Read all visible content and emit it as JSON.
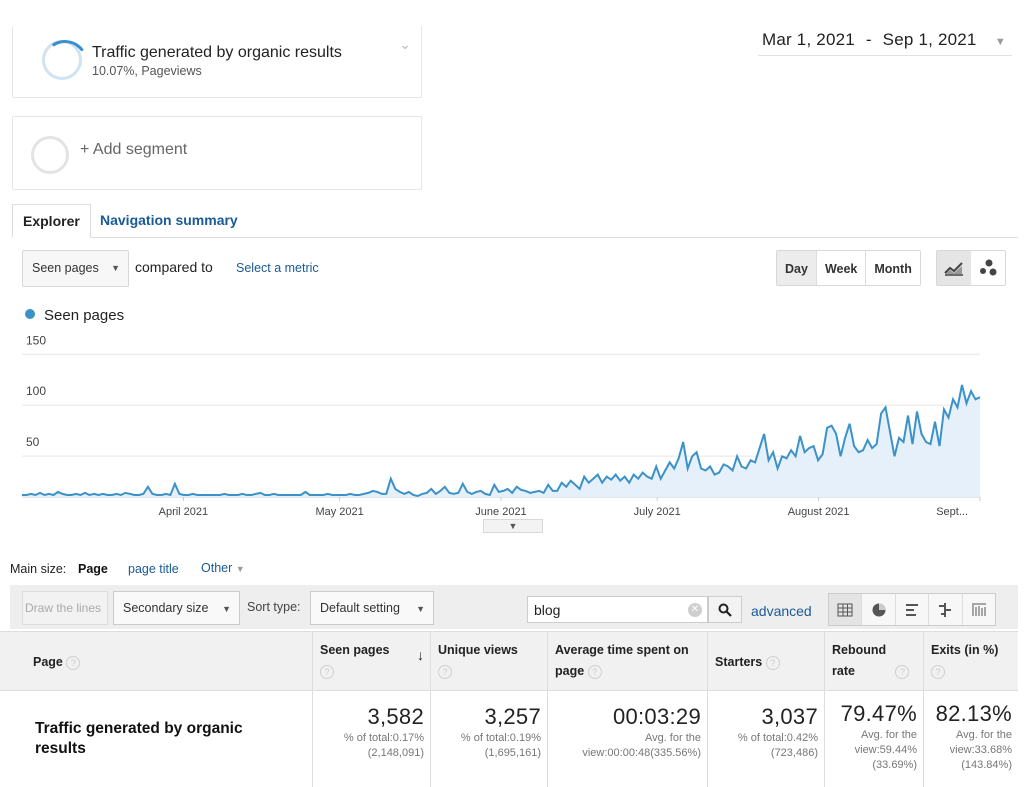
{
  "segments": [
    {
      "title": "Traffic generated by organic results",
      "subtitle": "10.07%, Pageviews"
    },
    {
      "title": "+ Add segment"
    }
  ],
  "date_range": {
    "start": "Mar 1, 2021",
    "separator": "-",
    "end": "Sep 1, 2021"
  },
  "tabs": [
    {
      "label": "Explorer",
      "active": true
    },
    {
      "label": "Navigation summary",
      "active": false
    }
  ],
  "metric_controls": {
    "primary_metric": "Seen pages",
    "compared_to": "compared to",
    "select_metric": "Select a metric"
  },
  "period_buttons": [
    {
      "label": "Day",
      "active": true
    },
    {
      "label": "Week",
      "active": false
    },
    {
      "label": "Month",
      "active": false
    }
  ],
  "chart_type_icons": [
    "line-chart-icon",
    "motion-chart-icon"
  ],
  "chart_data": {
    "type": "area",
    "series": [
      {
        "name": "Seen pages",
        "color": "#3a92c9"
      }
    ],
    "y_ticks": [
      "150",
      "100",
      "50"
    ],
    "x_ticks": [
      "April 2021",
      "May 2021",
      "June 2021",
      "July 2021",
      "August 2021",
      "Sept..."
    ],
    "ylim": [
      0,
      165
    ],
    "x_range_days": [
      0,
      184
    ],
    "values": [
      2,
      2,
      3,
      2,
      4,
      2,
      3,
      2,
      5,
      3,
      2,
      2,
      3,
      2,
      4,
      2,
      3,
      2,
      3,
      2,
      2,
      3,
      2,
      4,
      3,
      2,
      2,
      3,
      10,
      3,
      2,
      2,
      3,
      2,
      13,
      3,
      2,
      2,
      3,
      2,
      2,
      2,
      2,
      2,
      2,
      3,
      2,
      2,
      2,
      3,
      2,
      2,
      3,
      4,
      2,
      2,
      3,
      2,
      2,
      2,
      2,
      2,
      2,
      5,
      2,
      2,
      2,
      2,
      3,
      2,
      2,
      2,
      2,
      3,
      2,
      2,
      3,
      4,
      6,
      5,
      3,
      3,
      18,
      8,
      5,
      3,
      5,
      2,
      1,
      3,
      4,
      8,
      3,
      6,
      10,
      4,
      3,
      4,
      13,
      5,
      3,
      5,
      6,
      3,
      2,
      12,
      5,
      6,
      8,
      4,
      10,
      7,
      6,
      4,
      5,
      6,
      4,
      12,
      6,
      6,
      14,
      10,
      16,
      12,
      8,
      20,
      14,
      18,
      22,
      14,
      20,
      17,
      22,
      16,
      20,
      14,
      22,
      18,
      24,
      20,
      18,
      30,
      18,
      26,
      34,
      28,
      38,
      54,
      28,
      40,
      44,
      28,
      26,
      30,
      22,
      24,
      32,
      30,
      26,
      40,
      30,
      28,
      36,
      34,
      48,
      62,
      36,
      44,
      28,
      40,
      38,
      46,
      40,
      60,
      44,
      48,
      50,
      36,
      42,
      68,
      70,
      62,
      40,
      58,
      72,
      50,
      44,
      46,
      56,
      48,
      52,
      82,
      88,
      64,
      40,
      58,
      54,
      80,
      52,
      84,
      62,
      54,
      52,
      74,
      50,
      86,
      78,
      96,
      88,
      110,
      92,
      104,
      96,
      98
    ]
  },
  "main_size": {
    "label": "Main size:",
    "options": [
      "Page",
      "page title",
      "Other"
    ],
    "selected": "Page"
  },
  "toolbar": {
    "draw_lines": "Draw the lines",
    "secondary_size": "Secondary size",
    "sort_type_label": "Sort type:",
    "sort_value": "Default setting",
    "search_value": "blog",
    "advanced": "advanced"
  },
  "view_icons": [
    "data-table-icon",
    "pie-chart-icon",
    "performance-icon",
    "comparison-icon",
    "term-cloud-icon"
  ],
  "table": {
    "columns": [
      {
        "label": "Page",
        "help": "?"
      },
      {
        "label": "Seen pages",
        "help": "?",
        "sorted": true
      },
      {
        "label": "Unique views",
        "help": "?"
      },
      {
        "label": "Average time spent on page",
        "help": "?"
      },
      {
        "label": "Starters",
        "help": "?"
      },
      {
        "label": "Rebound rate",
        "help": "?"
      },
      {
        "label": "Exits (in %)",
        "help": "?"
      }
    ],
    "rows": [
      {
        "title": "Traffic generated by organic results",
        "cells": [
          {
            "value": "3,582",
            "sub1": "% of total:0.17%",
            "sub2": "(2,148,091)"
          },
          {
            "value": "3,257",
            "sub1": "% of total:0.19%",
            "sub2": "(1,695,161)"
          },
          {
            "value": "00:03:29",
            "sub1": "Avg. for the",
            "sub2": "view:00:00:48(335.56%)"
          },
          {
            "value": "3,037",
            "sub1": "% of total:0.42%",
            "sub2": "(723,486)"
          },
          {
            "value": "79.47%",
            "sub1": "Avg. for the",
            "sub2": "view:59.44%",
            "sub3": "(33.69%)"
          },
          {
            "value": "82.13%",
            "sub1": "Avg. for the",
            "sub2": "view:33.68%",
            "sub3": "(143.84%)"
          }
        ]
      }
    ]
  }
}
